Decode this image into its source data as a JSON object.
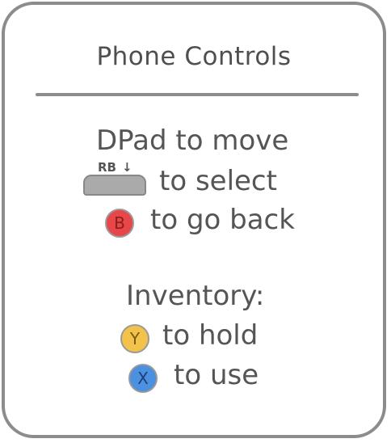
{
  "panel": {
    "title": "Phone Controls"
  },
  "controls": {
    "dpad_text": "DPad to move",
    "rb_label": "RB",
    "rb_arrow": "↓",
    "select_text": "to select",
    "b_label": "B",
    "back_text": "to go back"
  },
  "inventory": {
    "heading": "Inventory:",
    "y_label": "Y",
    "hold_text": "to hold",
    "x_label": "X",
    "use_text": "to use"
  },
  "colors": {
    "border": "#8c8c8c",
    "text": "#555555",
    "b_button": "#e8474a",
    "y_button": "#f2c24a",
    "x_button": "#4c90e0",
    "rb_button": "#aaaaaa"
  },
  "icons": {
    "rb": "rb-shoulder-button-icon",
    "b": "b-button-icon",
    "y": "y-button-icon",
    "x": "x-button-icon"
  }
}
